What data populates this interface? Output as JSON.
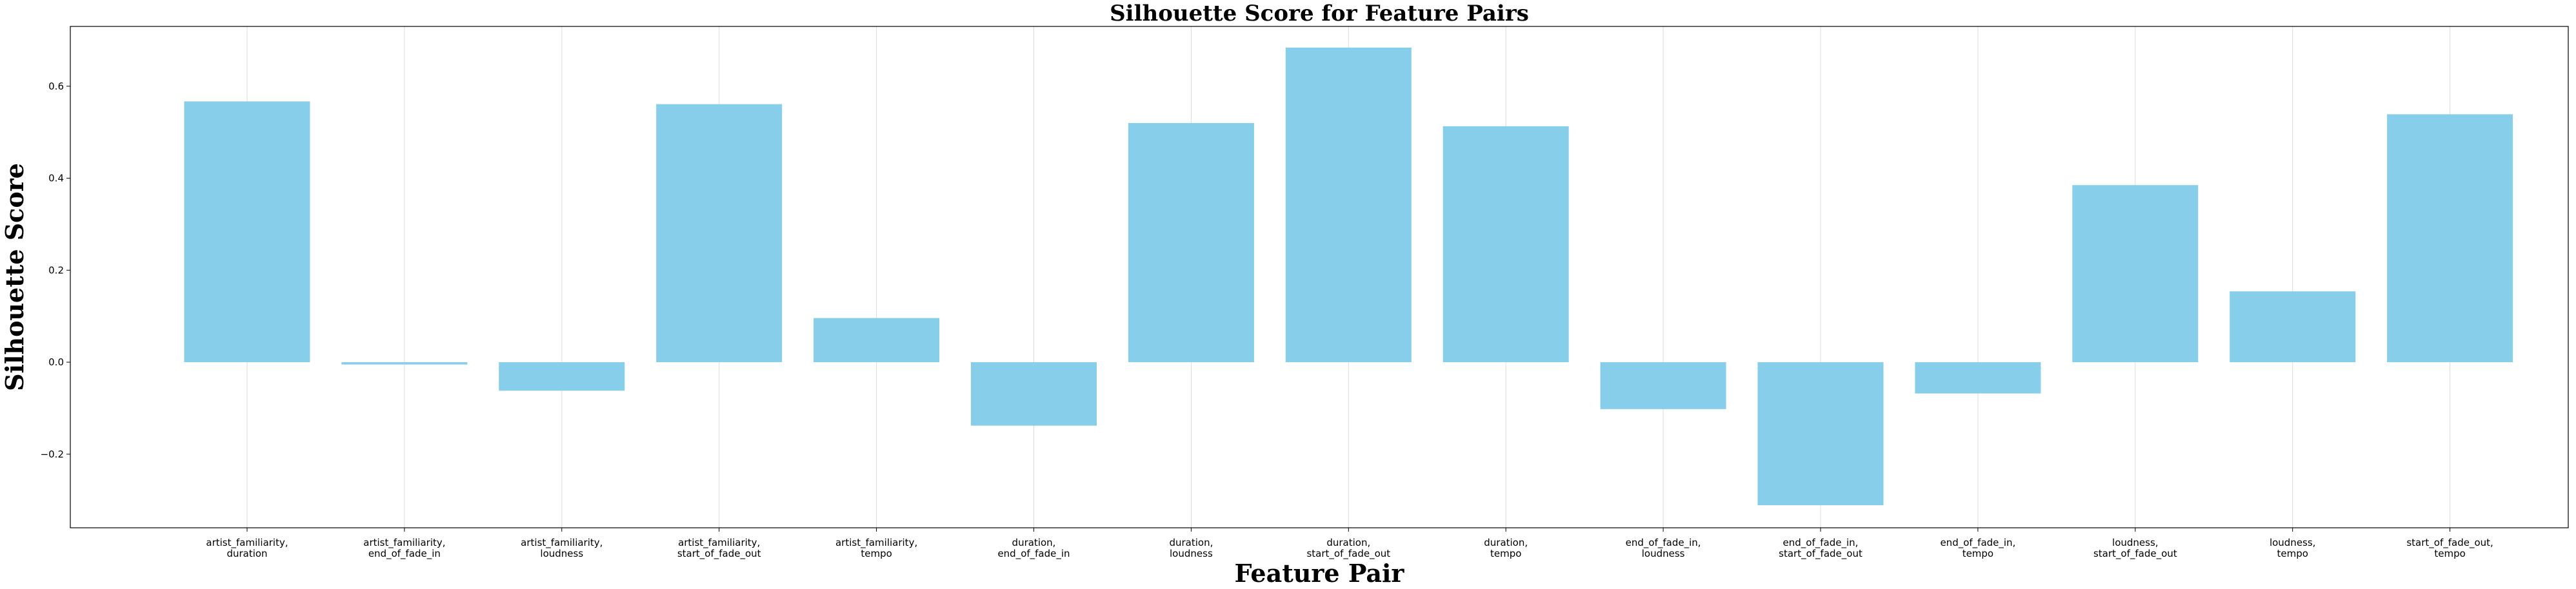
{
  "chart_data": {
    "type": "bar",
    "title": "Silhouette Score for Feature Pairs",
    "xlabel": "Feature Pair",
    "ylabel": "Silhouette Score",
    "categories": [
      "artist_familiarity,\nduration",
      "artist_familiarity,\nend_of_fade_in",
      "artist_familiarity,\nloudness",
      "artist_familiarity,\nstart_of_fade_out",
      "artist_familiarity,\ntempo",
      "duration,\nend_of_fade_in",
      "duration,\nloudness",
      "duration,\nstart_of_fade_out",
      "duration,\ntempo",
      "end_of_fade_in,\nloudness",
      "end_of_fade_in,\nstart_of_fade_out",
      "end_of_fade_in,\ntempo",
      "loudness,\nstart_of_fade_out",
      "loudness,\ntempo",
      "start_of_fade_out,\ntempo"
    ],
    "values": [
      0.567,
      -0.005,
      -0.062,
      0.561,
      0.096,
      -0.138,
      0.52,
      0.684,
      0.513,
      -0.102,
      -0.311,
      -0.068,
      0.385,
      0.154,
      0.539
    ],
    "yticks": [
      -0.2,
      0.0,
      0.2,
      0.4,
      0.6
    ],
    "ytick_labels": [
      "−0.2",
      "0.0",
      "0.2",
      "0.4",
      "0.6"
    ],
    "ylim": [
      -0.36,
      0.73
    ],
    "grid": "x-axis only",
    "bar_color": "#87CEEB"
  }
}
